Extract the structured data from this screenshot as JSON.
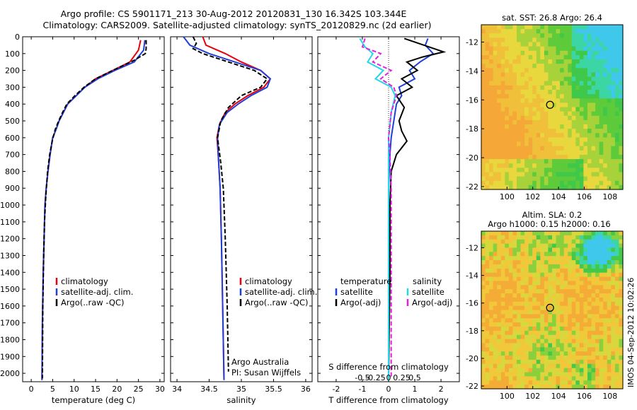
{
  "header": {
    "line1": "Argo profile: CS 5901171_213 30-Aug-2012 20120831_130 16.342S 103.344E",
    "line2": "Climatology: CARS2009. Satellite-adjusted climatology: synTS_20120829.nc (2d earlier)"
  },
  "side_stamp": "IMOS 04-Sep-2012 10:02:26",
  "colors": {
    "climatology": "#e8000b",
    "satellite": "#1f3fd8",
    "argo": "#000000",
    "sat_salinity": "#22d8e8",
    "argo_salinity": "#e020e0"
  },
  "chart_data": [
    {
      "type": "line",
      "name": "temperature-profile",
      "xlabel": "temperature (deg C)",
      "ylabel": "",
      "xlim": [
        -2,
        31
      ],
      "ylim": [
        2050,
        0
      ],
      "xticks": [
        "0",
        "5",
        "10",
        "15",
        "20",
        "25",
        "30"
      ],
      "yticks": [
        "0",
        "100",
        "200",
        "300",
        "400",
        "500",
        "600",
        "700",
        "800",
        "900",
        "1000",
        "1100",
        "1200",
        "1300",
        "1400",
        "1500",
        "1600",
        "1700",
        "1800",
        "1900",
        "2000"
      ],
      "legend": [
        "climatology",
        "satellite-adj. clim.",
        "Argo(..raw -QC)"
      ],
      "series": [
        {
          "name": "climatology",
          "x": [
            25.5,
            25,
            23,
            19,
            15,
            12.5,
            10.5,
            8.5,
            7.5,
            6.5,
            5.8,
            5,
            4.4,
            3.9,
            3.5,
            3.2,
            3.0,
            2.8,
            2.6,
            2.5
          ],
          "y": [
            20,
            80,
            150,
            200,
            250,
            300,
            350,
            400,
            450,
            500,
            550,
            600,
            700,
            800,
            900,
            1000,
            1200,
            1400,
            1700,
            2040
          ]
        },
        {
          "name": "satellite-adj. clim.",
          "x": [
            26.5,
            26.2,
            24,
            19.5,
            15.5,
            12.5,
            10.5,
            8.5,
            7.5,
            6.5,
            5.8,
            5,
            4.4,
            3.9,
            3.5,
            3.2,
            3.0,
            2.8,
            2.6,
            2.5
          ],
          "y": [
            20,
            80,
            150,
            200,
            250,
            300,
            350,
            400,
            450,
            500,
            550,
            600,
            700,
            800,
            900,
            1000,
            1200,
            1400,
            1700,
            2040
          ]
        },
        {
          "name": "Argo(..raw -QC)",
          "x": [
            26.8,
            26.8,
            26.6,
            24,
            19,
            15,
            12.3,
            10.2,
            8.3,
            7.3,
            6.4,
            5.6,
            4.9,
            4.3,
            3.8,
            3.4,
            3.1,
            2.9,
            2.7,
            2.6
          ],
          "y": [
            20,
            70,
            100,
            140,
            200,
            250,
            300,
            350,
            400,
            450,
            500,
            550,
            620,
            700,
            800,
            950,
            1100,
            1300,
            1600,
            2030
          ]
        }
      ]
    },
    {
      "type": "line",
      "name": "salinity-profile",
      "xlabel": "salinity",
      "xlim": [
        33.9,
        36.1
      ],
      "ylim": [
        2050,
        0
      ],
      "xticks": [
        "34",
        "34.5",
        "35",
        "35.5",
        "36"
      ],
      "legend": [
        "climatology",
        "satellite-adj. clim.",
        "Argo(..raw -QC)"
      ],
      "annotation": [
        "Argo Australia",
        "PI: Susan Wijffels"
      ],
      "series": [
        {
          "name": "climatology",
          "x": [
            34.4,
            34.45,
            34.75,
            35.0,
            35.3,
            35.45,
            35.35,
            35.1,
            34.9,
            34.75,
            34.66,
            34.62,
            34.64,
            34.67,
            34.69,
            34.71,
            34.73
          ],
          "y": [
            0,
            50,
            100,
            150,
            200,
            250,
            300,
            350,
            400,
            450,
            520,
            600,
            700,
            900,
            1200,
            1600,
            2040
          ]
        },
        {
          "name": "satellite-adj. clim.",
          "x": [
            34.1,
            34.2,
            34.5,
            34.9,
            35.3,
            35.45,
            35.4,
            35.15,
            34.95,
            34.78,
            34.66,
            34.63,
            34.64,
            34.67,
            34.69,
            34.71,
            34.73
          ],
          "y": [
            0,
            50,
            100,
            150,
            200,
            250,
            300,
            350,
            400,
            450,
            520,
            600,
            700,
            900,
            1200,
            1600,
            2040
          ]
        },
        {
          "name": "Argo(..raw -QC)",
          "x": [
            34.25,
            34.3,
            34.25,
            34.4,
            34.8,
            35.2,
            35.4,
            35.3,
            35.0,
            34.8,
            34.68,
            34.63,
            34.68,
            34.72,
            34.75,
            34.78,
            34.8
          ],
          "y": [
            0,
            40,
            70,
            100,
            150,
            200,
            250,
            300,
            350,
            420,
            500,
            600,
            750,
            900,
            1200,
            1600,
            1990
          ]
        }
      ]
    },
    {
      "type": "line",
      "name": "difference-profile",
      "xlabel": "T difference from climatology",
      "top_label": "S difference from climatology",
      "xlim": [
        -2.7,
        2.7
      ],
      "ylim": [
        2050,
        0
      ],
      "xticks": [
        "-2",
        "-1",
        "0",
        "1",
        "2"
      ],
      "sticks": [
        "-0.5",
        "-0.25",
        "0",
        "0.25",
        "0.5"
      ],
      "legend_left_title": "temperature",
      "legend_right_title": "salinity",
      "legend": [
        "satellite",
        "Argo(-adj)",
        "satellite",
        "Argo(-adj)"
      ],
      "series": [
        {
          "name": "T satellite",
          "x": [
            1.5,
            1.4,
            1.7,
            1.2,
            0.8,
            1.0,
            0.4,
            0.5,
            0.3,
            0.2,
            0.1,
            0.05,
            0,
            0,
            0,
            0
          ],
          "y": [
            10,
            50,
            100,
            150,
            200,
            250,
            300,
            350,
            400,
            500,
            600,
            700,
            900,
            1200,
            1600,
            2040
          ]
        },
        {
          "name": "T Argo(-adj)",
          "x": [
            0.6,
            2.1,
            1.3,
            0.7,
            1.1,
            0.5,
            0.9,
            0.3,
            0.6,
            0.4,
            0.5,
            0.7,
            0.3,
            0.1,
            0.05,
            0.05,
            0
          ],
          "y": [
            10,
            90,
            120,
            150,
            200,
            250,
            300,
            350,
            420,
            500,
            560,
            620,
            700,
            800,
            1000,
            1400,
            2030
          ]
        },
        {
          "name": "S satellite",
          "x": [
            -1.1,
            -0.9,
            -0.6,
            -0.8,
            -0.2,
            -0.5,
            0.1,
            0.25,
            0.1,
            0.0,
            0,
            0,
            0
          ],
          "y": [
            10,
            60,
            100,
            150,
            200,
            250,
            300,
            350,
            450,
            600,
            800,
            1400,
            2040
          ]
        },
        {
          "name": "S Argo(-adj)",
          "x": [
            -0.9,
            -1.0,
            -0.3,
            -0.6,
            0.1,
            -0.3,
            0.2,
            0.3,
            0.1,
            0.0,
            0.05,
            0.1,
            0.1,
            0.1
          ],
          "y": [
            10,
            60,
            100,
            150,
            200,
            250,
            300,
            350,
            450,
            600,
            700,
            900,
            1400,
            2030
          ]
        }
      ]
    },
    {
      "type": "heatmap",
      "name": "sst-map",
      "title": "sat. SST: 26.8 Argo: 26.4",
      "xlim": [
        98,
        109
      ],
      "ylim": [
        -22.2,
        -10.8
      ],
      "xticks": [
        "100",
        "102",
        "104",
        "106",
        "108"
      ],
      "yticks": [
        "-12",
        "-14",
        "-16",
        "-18",
        "-20",
        "-22"
      ],
      "marker": {
        "lon": 103.344,
        "lat": -16.342
      }
    },
    {
      "type": "heatmap",
      "name": "sla-map",
      "title": [
        "Altim. SLA: 0.2",
        "Argo h1000: 0.15 h2000: 0.16"
      ],
      "xlim": [
        98,
        109
      ],
      "ylim": [
        -22.2,
        -10.8
      ],
      "xticks": [
        "100",
        "102",
        "104",
        "106",
        "108"
      ],
      "yticks": [
        "-12",
        "-14",
        "-16",
        "-18",
        "-20",
        "-22"
      ],
      "marker": {
        "lon": 103.344,
        "lat": -16.342
      }
    }
  ]
}
